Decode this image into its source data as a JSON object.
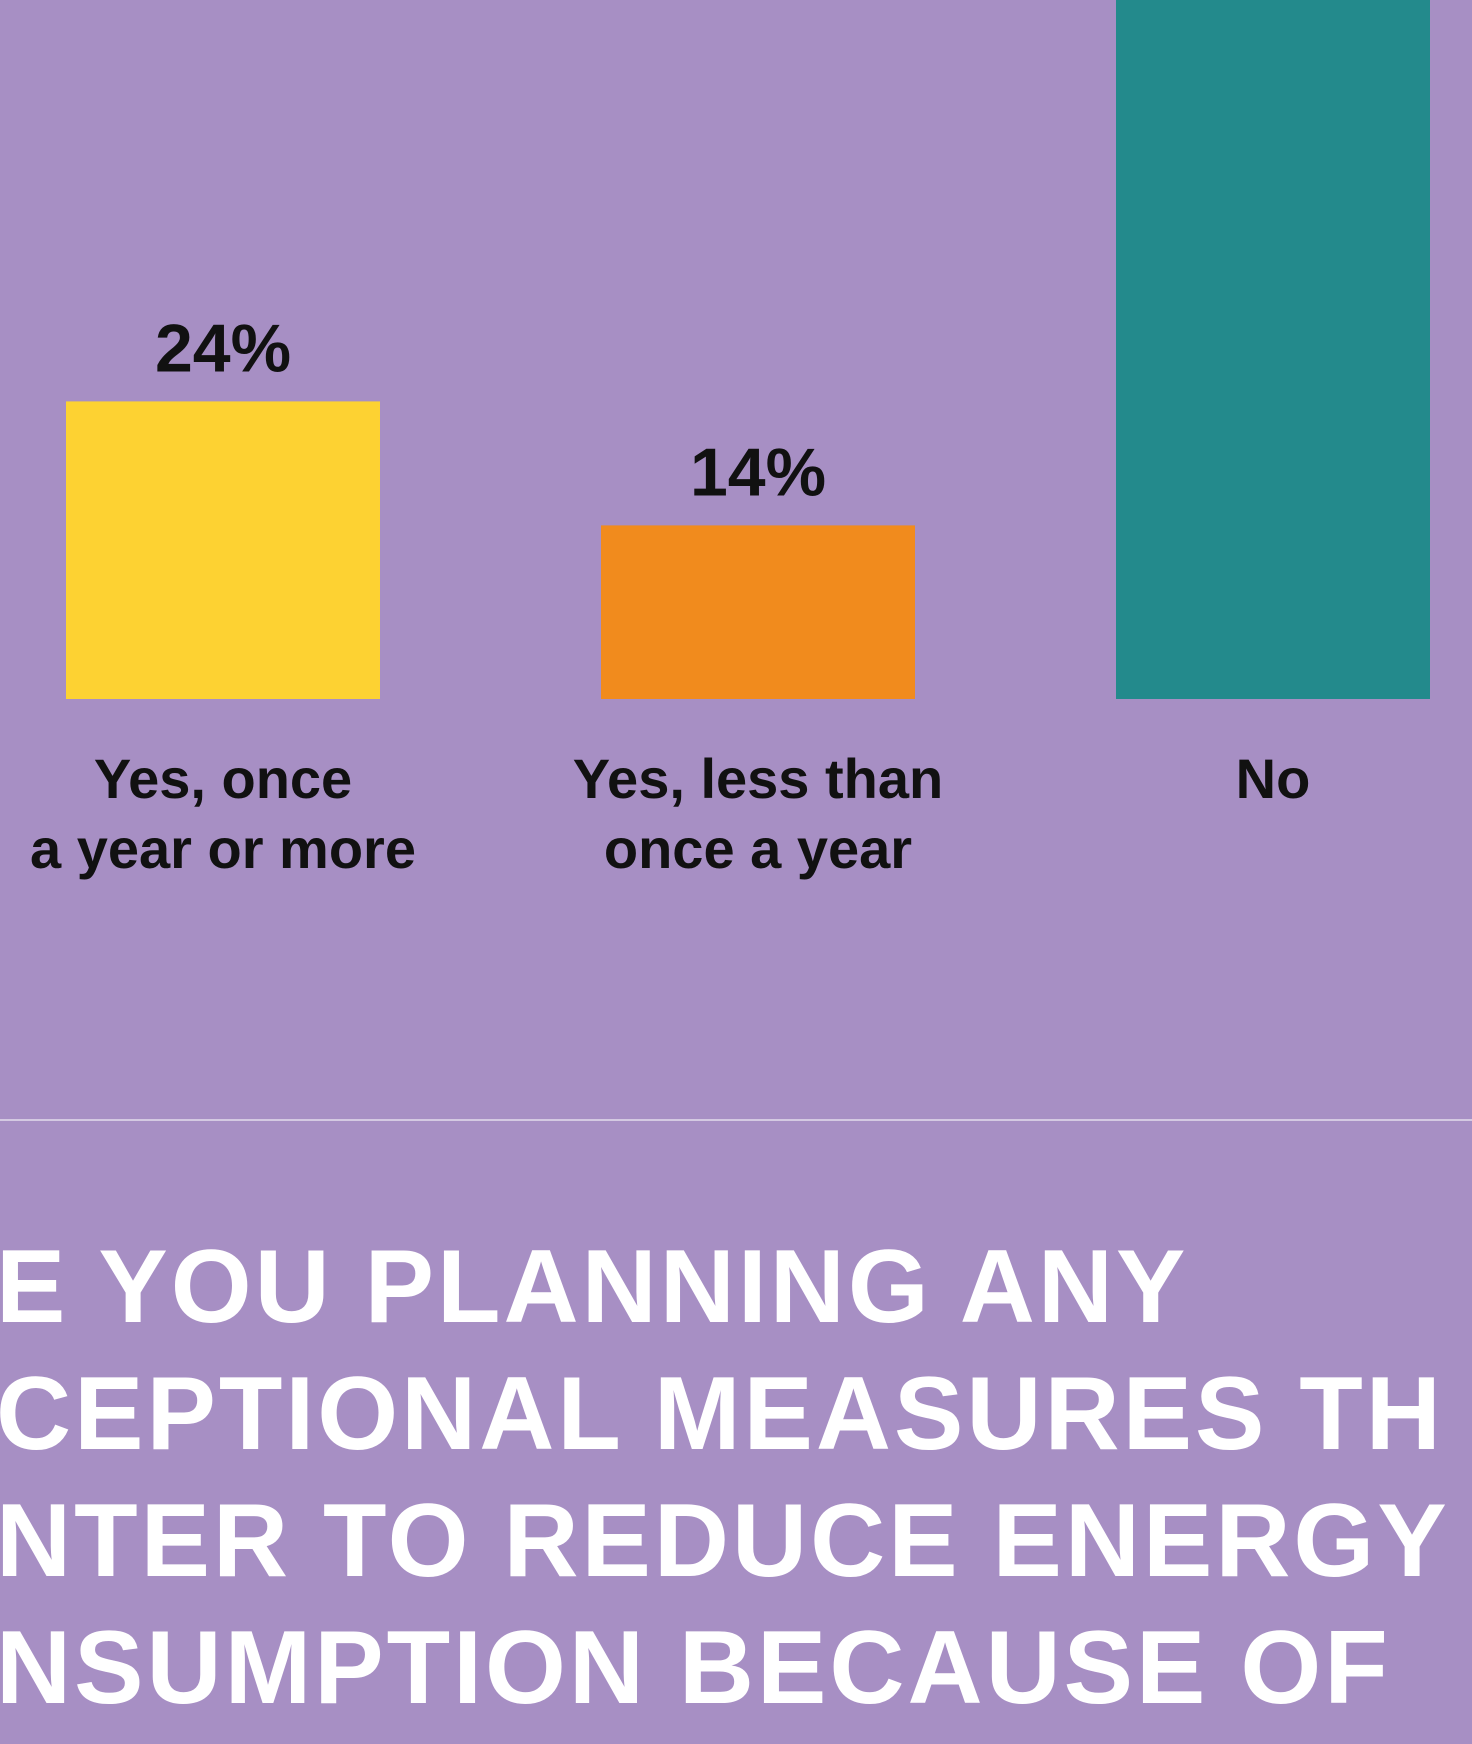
{
  "chart_data": {
    "type": "bar",
    "categories": [
      [
        "Yes, once",
        "a year or more"
      ],
      [
        "Yes, less than",
        "once a year"
      ],
      [
        "No"
      ]
    ],
    "values": [
      24,
      14,
      62
    ],
    "value_labels": [
      "24%",
      "14%",
      null
    ],
    "colors": [
      "#fdd232",
      "#f18b1d",
      "#238a8c"
    ],
    "grid": false
  },
  "footer": {
    "title_lines": [
      "E YOU PLANNING ANY",
      "CEPTIONAL MEASURES TH",
      "NTER TO REDUCE ENERGY",
      "NSUMPTION BECAUSE OF"
    ]
  }
}
